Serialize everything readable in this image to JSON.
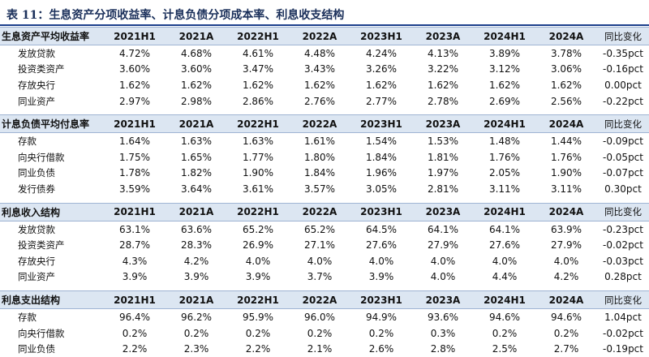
{
  "title": "表 11：生息资产分项收益率、计息负债分项成本率、利息收支结构",
  "columns": [
    "2021H1",
    "2021A",
    "2022H1",
    "2022A",
    "2023H1",
    "2023A",
    "2024H1",
    "2024A",
    "同比变化"
  ],
  "sections": [
    {
      "header": "生息资产平均收益率",
      "rows": [
        {
          "label": "发放贷款",
          "values": [
            "4.72%",
            "4.68%",
            "4.61%",
            "4.48%",
            "4.24%",
            "4.13%",
            "3.89%",
            "3.78%",
            "-0.35pct"
          ]
        },
        {
          "label": "投资类资产",
          "values": [
            "3.60%",
            "3.60%",
            "3.47%",
            "3.43%",
            "3.26%",
            "3.22%",
            "3.12%",
            "3.06%",
            "-0.16pct"
          ]
        },
        {
          "label": "存放央行",
          "values": [
            "1.62%",
            "1.62%",
            "1.62%",
            "1.62%",
            "1.62%",
            "1.62%",
            "1.62%",
            "1.62%",
            "0.00pct"
          ]
        },
        {
          "label": "同业资产",
          "values": [
            "2.97%",
            "2.98%",
            "2.86%",
            "2.76%",
            "2.77%",
            "2.78%",
            "2.69%",
            "2.56%",
            "-0.22pct"
          ]
        }
      ]
    },
    {
      "header": "计息负债平均付息率",
      "rows": [
        {
          "label": "存款",
          "values": [
            "1.64%",
            "1.63%",
            "1.63%",
            "1.61%",
            "1.54%",
            "1.53%",
            "1.48%",
            "1.44%",
            "-0.09pct"
          ]
        },
        {
          "label": "向央行借款",
          "values": [
            "1.75%",
            "1.65%",
            "1.77%",
            "1.80%",
            "1.84%",
            "1.81%",
            "1.76%",
            "1.76%",
            "-0.05pct"
          ]
        },
        {
          "label": "同业负债",
          "values": [
            "1.78%",
            "1.82%",
            "1.90%",
            "1.84%",
            "1.96%",
            "1.97%",
            "2.05%",
            "1.90%",
            "-0.07pct"
          ]
        },
        {
          "label": "发行债券",
          "values": [
            "3.59%",
            "3.64%",
            "3.61%",
            "3.57%",
            "3.05%",
            "2.81%",
            "3.11%",
            "3.11%",
            "0.30pct"
          ]
        }
      ]
    },
    {
      "header": "利息收入结构",
      "rows": [
        {
          "label": "发放贷款",
          "values": [
            "63.1%",
            "63.6%",
            "65.2%",
            "65.2%",
            "64.5%",
            "64.1%",
            "64.1%",
            "63.9%",
            "-0.23pct"
          ]
        },
        {
          "label": "投资类资产",
          "values": [
            "28.7%",
            "28.3%",
            "26.9%",
            "27.1%",
            "27.6%",
            "27.9%",
            "27.6%",
            "27.9%",
            "-0.02pct"
          ]
        },
        {
          "label": "存放央行",
          "values": [
            "4.3%",
            "4.2%",
            "4.0%",
            "4.0%",
            "4.0%",
            "4.0%",
            "4.0%",
            "4.0%",
            "-0.03pct"
          ]
        },
        {
          "label": "同业资产",
          "values": [
            "3.9%",
            "3.9%",
            "3.9%",
            "3.7%",
            "3.9%",
            "4.0%",
            "4.4%",
            "4.2%",
            "0.28pct"
          ]
        }
      ]
    },
    {
      "header": "利息支出结构",
      "rows": [
        {
          "label": "存款",
          "values": [
            "96.4%",
            "96.2%",
            "95.9%",
            "96.0%",
            "94.9%",
            "93.6%",
            "94.6%",
            "94.6%",
            "1.04pct"
          ]
        },
        {
          "label": "向央行借款",
          "values": [
            "0.2%",
            "0.2%",
            "0.2%",
            "0.2%",
            "0.2%",
            "0.3%",
            "0.2%",
            "0.2%",
            "-0.02pct"
          ]
        },
        {
          "label": "同业负债",
          "values": [
            "2.2%",
            "2.3%",
            "2.2%",
            "2.1%",
            "2.6%",
            "2.8%",
            "2.5%",
            "2.7%",
            "-0.19pct"
          ]
        }
      ]
    }
  ]
}
